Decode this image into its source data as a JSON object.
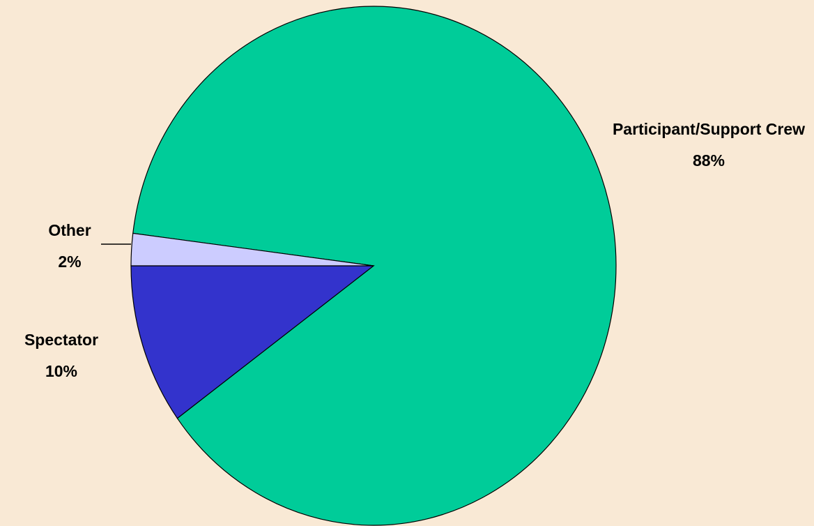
{
  "chart_data": {
    "type": "pie",
    "categories": [
      "Participant/Support Crew",
      "Spectator",
      "Other"
    ],
    "values": [
      88,
      10,
      2
    ],
    "value_labels": [
      "88%",
      "10%",
      "2%"
    ],
    "colors": [
      "#00cc99",
      "#3333cc",
      "#ccccff"
    ]
  }
}
